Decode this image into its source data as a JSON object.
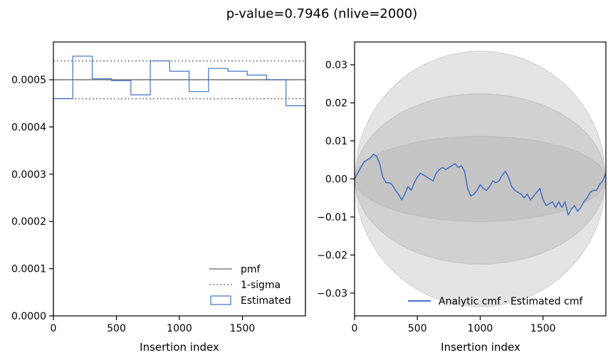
{
  "figure": {
    "title": "p-value=0.7946 (nlive=2000)"
  },
  "chart_data": [
    {
      "type": "step",
      "xlabel": "Insertion index",
      "ylabel": "",
      "xlim": [
        0,
        2000
      ],
      "ylim": [
        0,
        0.00058
      ],
      "xticks": [
        0,
        500,
        1000,
        1500
      ],
      "xtick_labels": [
        "0",
        "500",
        "1000",
        "1500"
      ],
      "yticks": [
        0,
        0.0001,
        0.0002,
        0.0003,
        0.0004,
        0.0005
      ],
      "ytick_labels": [
        "0.0000",
        "0.0001",
        "0.0002",
        "0.0003",
        "0.0004",
        "0.0005"
      ],
      "legend_position": "lower right",
      "pmf": {
        "name": "pmf",
        "value": 0.0005,
        "color": "#7f7f7f"
      },
      "sigma": {
        "name": "1-sigma",
        "values": [
          0.00046,
          0.00054
        ],
        "color": "#7f7f7f"
      },
      "histogram": {
        "name": "Estimated",
        "color": "#4472c4",
        "bin_edges": [
          0,
          154,
          308,
          462,
          615,
          769,
          923,
          1077,
          1231,
          1385,
          1538,
          1692,
          1846,
          2000
        ],
        "values": [
          0.00046,
          0.00055,
          0.000502,
          0.000498,
          0.000468,
          0.00054,
          0.000518,
          0.000475,
          0.000524,
          0.000518,
          0.00051,
          0.0005,
          0.000445
        ]
      }
    },
    {
      "type": "line",
      "xlabel": "Insertion index",
      "ylabel": "",
      "xlim": [
        0,
        2000
      ],
      "ylim": [
        -0.036,
        0.036
      ],
      "xticks": [
        0,
        500,
        1000,
        1500
      ],
      "xtick_labels": [
        "0",
        "500",
        "1000",
        "1500"
      ],
      "yticks": [
        -0.03,
        -0.02,
        -0.01,
        0.0,
        0.01,
        0.02,
        0.03
      ],
      "ytick_labels": [
        "−0.03",
        "−0.02",
        "−0.01",
        "0.00",
        "0.01",
        "0.02",
        "0.03"
      ],
      "legend_position": "lower right",
      "bands": {
        "sigma_half_width_at_center": 0.0112,
        "levels": [
          1,
          2,
          3
        ],
        "color": "#aaaaaa"
      },
      "series": [
        {
          "name": "Analytic cmf - Estimated cmf",
          "color": "#4472c4",
          "x": [
            0,
            25,
            50,
            75,
            100,
            125,
            150,
            175,
            200,
            225,
            250,
            275,
            300,
            325,
            350,
            375,
            400,
            425,
            450,
            475,
            500,
            525,
            550,
            575,
            600,
            625,
            650,
            675,
            700,
            725,
            750,
            775,
            800,
            825,
            850,
            875,
            900,
            925,
            950,
            975,
            1000,
            1025,
            1050,
            1075,
            1100,
            1125,
            1150,
            1175,
            1200,
            1225,
            1250,
            1275,
            1300,
            1325,
            1350,
            1375,
            1400,
            1425,
            1450,
            1475,
            1500,
            1525,
            1550,
            1575,
            1600,
            1625,
            1650,
            1675,
            1700,
            1725,
            1750,
            1775,
            1800,
            1825,
            1850,
            1875,
            1900,
            1925,
            1950,
            1975,
            2000
          ],
          "y": [
            0.0,
            0.0015,
            0.003,
            0.0045,
            0.005,
            0.0055,
            0.0065,
            0.006,
            0.004,
            0.0005,
            -0.001,
            -0.001,
            -0.0015,
            -0.003,
            -0.004,
            -0.0055,
            -0.004,
            -0.002,
            -0.003,
            -0.001,
            0.0005,
            0.0015,
            0.001,
            0.0005,
            0.0,
            -0.0005,
            0.0015,
            0.0025,
            0.003,
            0.0025,
            0.003,
            0.0035,
            0.004,
            0.003,
            0.0035,
            0.002,
            -0.0025,
            -0.0045,
            -0.004,
            -0.003,
            -0.0015,
            -0.0025,
            -0.003,
            -0.002,
            -0.0005,
            -0.001,
            -0.0005,
            0.001,
            0.002,
            0.0005,
            -0.002,
            -0.003,
            -0.0035,
            -0.004,
            -0.005,
            -0.004,
            -0.0055,
            -0.0045,
            -0.0035,
            -0.0025,
            -0.0055,
            -0.007,
            -0.0065,
            -0.006,
            -0.0075,
            -0.006,
            -0.0075,
            -0.006,
            -0.0095,
            -0.008,
            -0.007,
            -0.0085,
            -0.0075,
            -0.006,
            -0.005,
            -0.0035,
            -0.003,
            -0.003,
            -0.0015,
            -0.0005,
            0.0015
          ]
        }
      ]
    }
  ]
}
